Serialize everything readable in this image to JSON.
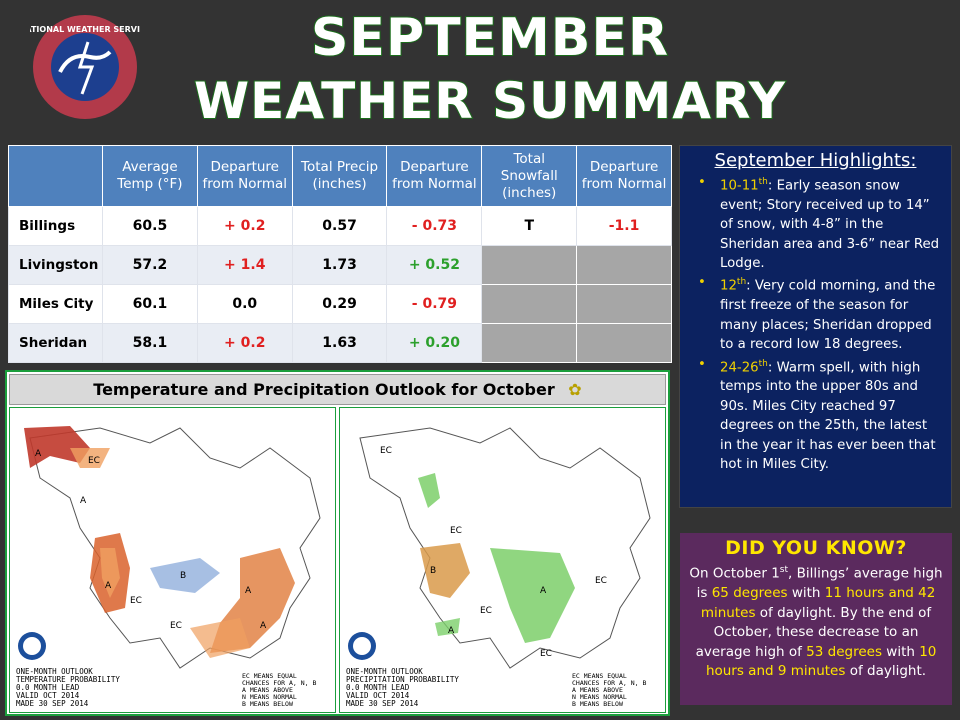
{
  "header": {
    "logo_text": "NATIONAL WEATHER SERVICE",
    "title_line1": "SEPTEMBER",
    "title_line2": "WEATHER SUMMARY"
  },
  "stats_table": {
    "columns": [
      "Average Temp (°F)",
      "Departure from Normal",
      "Total Precip (inches)",
      "Departure from Normal",
      "Total Snowfall (inches)",
      "Departure from Normal"
    ],
    "rows": [
      {
        "city": "Billings",
        "avg_temp": "60.5",
        "temp_dep": "+ 0.2",
        "precip": "0.57",
        "precip_dep": "- 0.73",
        "snow": "T",
        "snow_dep": "-1.1"
      },
      {
        "city": "Livingston",
        "avg_temp": "57.2",
        "temp_dep": "+ 1.4",
        "precip": "1.73",
        "precip_dep": "+ 0.52",
        "snow": "",
        "snow_dep": ""
      },
      {
        "city": "Miles City",
        "avg_temp": "60.1",
        "temp_dep": "0.0",
        "precip": "0.29",
        "precip_dep": "- 0.79",
        "snow": "",
        "snow_dep": ""
      },
      {
        "city": "Sheridan",
        "avg_temp": "58.1",
        "temp_dep": "+ 0.2",
        "precip": "1.63",
        "precip_dep": "+ 0.20",
        "snow": "",
        "snow_dep": ""
      }
    ]
  },
  "outlook": {
    "title": "Temperature and Precipitation Outlook for October",
    "temp_map": {
      "caption": "ONE-MONTH OUTLOOK\nTEMPERATURE PROBABILITY\n0.0 MONTH LEAD\nVALID OCT 2014\nMADE 30 SEP 2014",
      "legend": "EC MEANS EQUAL\nCHANCES FOR A, N, B\nA MEANS ABOVE\nN MEANS NORMAL\nB MEANS BELOW",
      "labels": [
        "EC",
        "A",
        "A",
        "B",
        "A",
        "EC",
        "EC",
        "A",
        "A"
      ]
    },
    "precip_map": {
      "caption": "ONE-MONTH OUTLOOK\nPRECIPITATION PROBABILITY\n0.0 MONTH LEAD\nVALID OCT 2014\nMADE 30 SEP 2014",
      "legend": "EC MEANS EQUAL\nCHANCES FOR A, N, B\nA MEANS ABOVE\nN MEANS NORMAL\nB MEANS BELOW",
      "labels": [
        "EC",
        "EC",
        "B",
        "A",
        "EC",
        "EC",
        "EC",
        "A"
      ]
    },
    "noaa_label": "NOAA"
  },
  "highlights": {
    "title": "September Highlights:",
    "items": [
      {
        "date": "10-11",
        "sup": "th",
        "text": ": Early season snow event; Story received up to 14” of snow, with 4-8” in the Sheridan area and 3-6” near Red Lodge."
      },
      {
        "date": "12",
        "sup": "th",
        "text": ": Very cold morning, and the first freeze of the season for many places; Sheridan dropped to a record low 18 degrees."
      },
      {
        "date": "24-26",
        "sup": "th",
        "text": ": Warm spell, with high temps into the upper 80s and 90s. Miles City reached 97 degrees on the 25th, the latest in the year it has ever been that hot in Miles City."
      }
    ]
  },
  "did_you_know": {
    "title": "DID YOU KNOW?",
    "p1": "On October 1",
    "p1_sup": "st",
    "p2": ", Billings’ average high is ",
    "h1": "65 degrees",
    "p3": " with ",
    "h2": "11 hours and 42 minutes",
    "p4": " of daylight. By the end of October, these decrease to an average high of ",
    "h3": "53 degrees",
    "p5": " with ",
    "h4": "10 hours and 9 minutes",
    "p6": " of daylight."
  },
  "colors": {
    "title_outline": "#1b6e1b",
    "table_header": "#4f81bd",
    "highlights_bg": "#0c2260",
    "dyk_bg": "#5b2a5e",
    "accent_yellow": "#ffe600",
    "warm": "#e07a3a",
    "cold": "#7fa8d8",
    "wet": "#7ccf6a",
    "dry": "#d99a4a"
  }
}
